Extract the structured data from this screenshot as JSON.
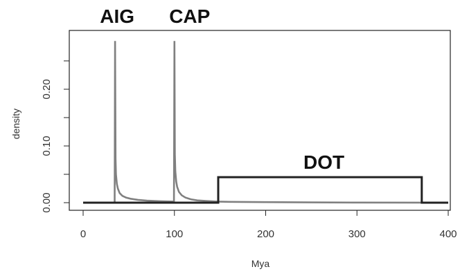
{
  "chart_data": {
    "type": "line",
    "title": "",
    "xlabel": "Mya",
    "ylabel": "density",
    "xlim": [
      0,
      400
    ],
    "ylim": [
      0,
      0.28
    ],
    "x_ticks": [
      0,
      100,
      200,
      300,
      400
    ],
    "x_tick_labels": [
      "0",
      "100",
      "200",
      "300",
      "400"
    ],
    "y_ticks": [
      0.0,
      0.1,
      0.2
    ],
    "y_tick_labels": [
      "0.00",
      "0.10",
      "0.20"
    ],
    "grid": false,
    "annotations": [
      {
        "text": "AIG",
        "x": 35
      },
      {
        "text": "CAP",
        "x": 100
      },
      {
        "text": "DOT",
        "x": 260
      }
    ],
    "series": [
      {
        "color": "#808080",
        "x": [
          0,
          34.5,
          35,
          35.5,
          36,
          37,
          38,
          40,
          43,
          47,
          52,
          60,
          70,
          85,
          99.5,
          100,
          100.5,
          101,
          102,
          103,
          105,
          108,
          112,
          118,
          125,
          135,
          147,
          160,
          200,
          250,
          300,
          371,
          400
        ],
        "values": [
          0,
          0,
          0.285,
          0.078,
          0.05,
          0.033,
          0.025,
          0.017,
          0.012,
          0.009,
          0.007,
          0.005,
          0.0035,
          0.0025,
          0.002,
          0.285,
          0.085,
          0.055,
          0.037,
          0.028,
          0.019,
          0.013,
          0.009,
          0.006,
          0.004,
          0.003,
          0.002,
          0.0015,
          0.001,
          0.0005,
          0.0002,
          0.0001,
          0
        ]
      },
      {
        "color": "#222222",
        "x": [
          0,
          148,
          148,
          371,
          371,
          400
        ],
        "values": [
          0,
          0,
          0.045,
          0.045,
          0,
          0
        ]
      }
    ]
  }
}
